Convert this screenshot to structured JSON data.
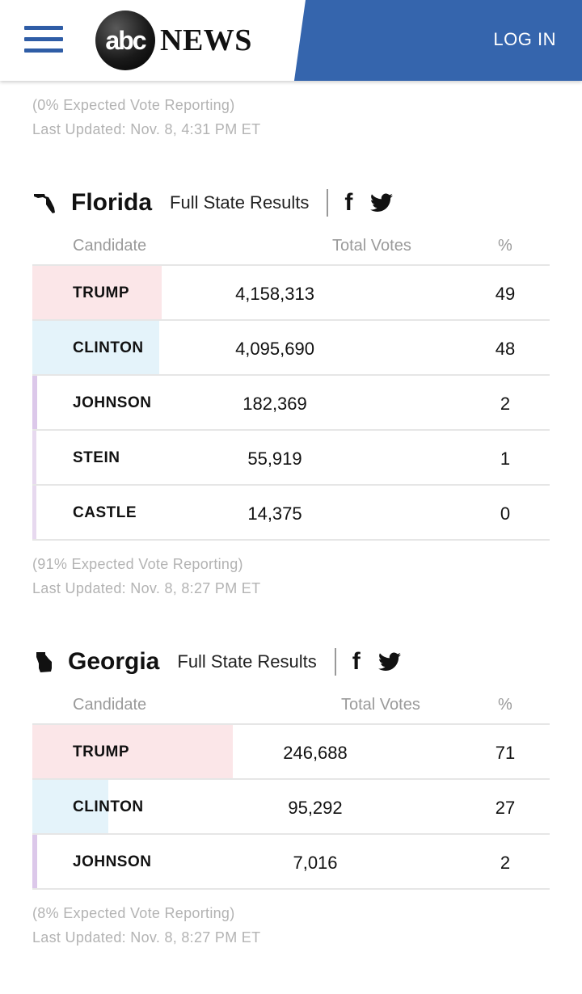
{
  "header": {
    "logo_mark": "abc",
    "logo_text": "NEWS",
    "login_label": "LOG IN",
    "menu_icon": "hamburger-menu-icon",
    "brand_color": "#3565ad"
  },
  "top_meta": {
    "reporting": "(0% Expected Vote Reporting)",
    "updated": "Last Updated: Nov. 8, 4:31 PM ET"
  },
  "colors": {
    "rep": "#fbe6e8",
    "dem": "#e4f3fa",
    "lib": "#dcc8ea",
    "grn": "#e7d9ef"
  },
  "states": [
    {
      "name": "Florida",
      "icon": "florida-state-icon",
      "full_results_label": "Full State Results",
      "columns": {
        "candidate": "Candidate",
        "votes": "Total Votes",
        "pct": "%"
      },
      "rows": [
        {
          "candidate": "TRUMP",
          "votes": "4,158,313",
          "pct": "49",
          "share": 0.25,
          "party": "rep"
        },
        {
          "candidate": "CLINTON",
          "votes": "4,095,690",
          "pct": "48",
          "share": 0.245,
          "party": "dem"
        },
        {
          "candidate": "JOHNSON",
          "votes": "182,369",
          "pct": "2",
          "share": 0.01,
          "party": "lib"
        },
        {
          "candidate": "STEIN",
          "votes": "55,919",
          "pct": "1",
          "share": 0.005,
          "party": "grn"
        },
        {
          "candidate": "CASTLE",
          "votes": "14,375",
          "pct": "0",
          "share": 0.0,
          "party": "grn"
        }
      ],
      "reporting": "(91% Expected Vote Reporting)",
      "updated": "Last Updated: Nov. 8, 8:27 PM ET"
    },
    {
      "name": "Georgia",
      "icon": "georgia-state-icon",
      "full_results_label": "Full State Results",
      "columns": {
        "candidate": "Candidate",
        "votes": "Total Votes",
        "pct": "%"
      },
      "rows": [
        {
          "candidate": "TRUMP",
          "votes": "246,688",
          "pct": "71",
          "share": 0.387,
          "party": "rep"
        },
        {
          "candidate": "CLINTON",
          "votes": "95,292",
          "pct": "27",
          "share": 0.147,
          "party": "dem"
        },
        {
          "candidate": "JOHNSON",
          "votes": "7,016",
          "pct": "2",
          "share": 0.01,
          "party": "lib"
        }
      ],
      "reporting": "(8% Expected Vote Reporting)",
      "updated": "Last Updated: Nov. 8, 8:27 PM ET"
    }
  ]
}
